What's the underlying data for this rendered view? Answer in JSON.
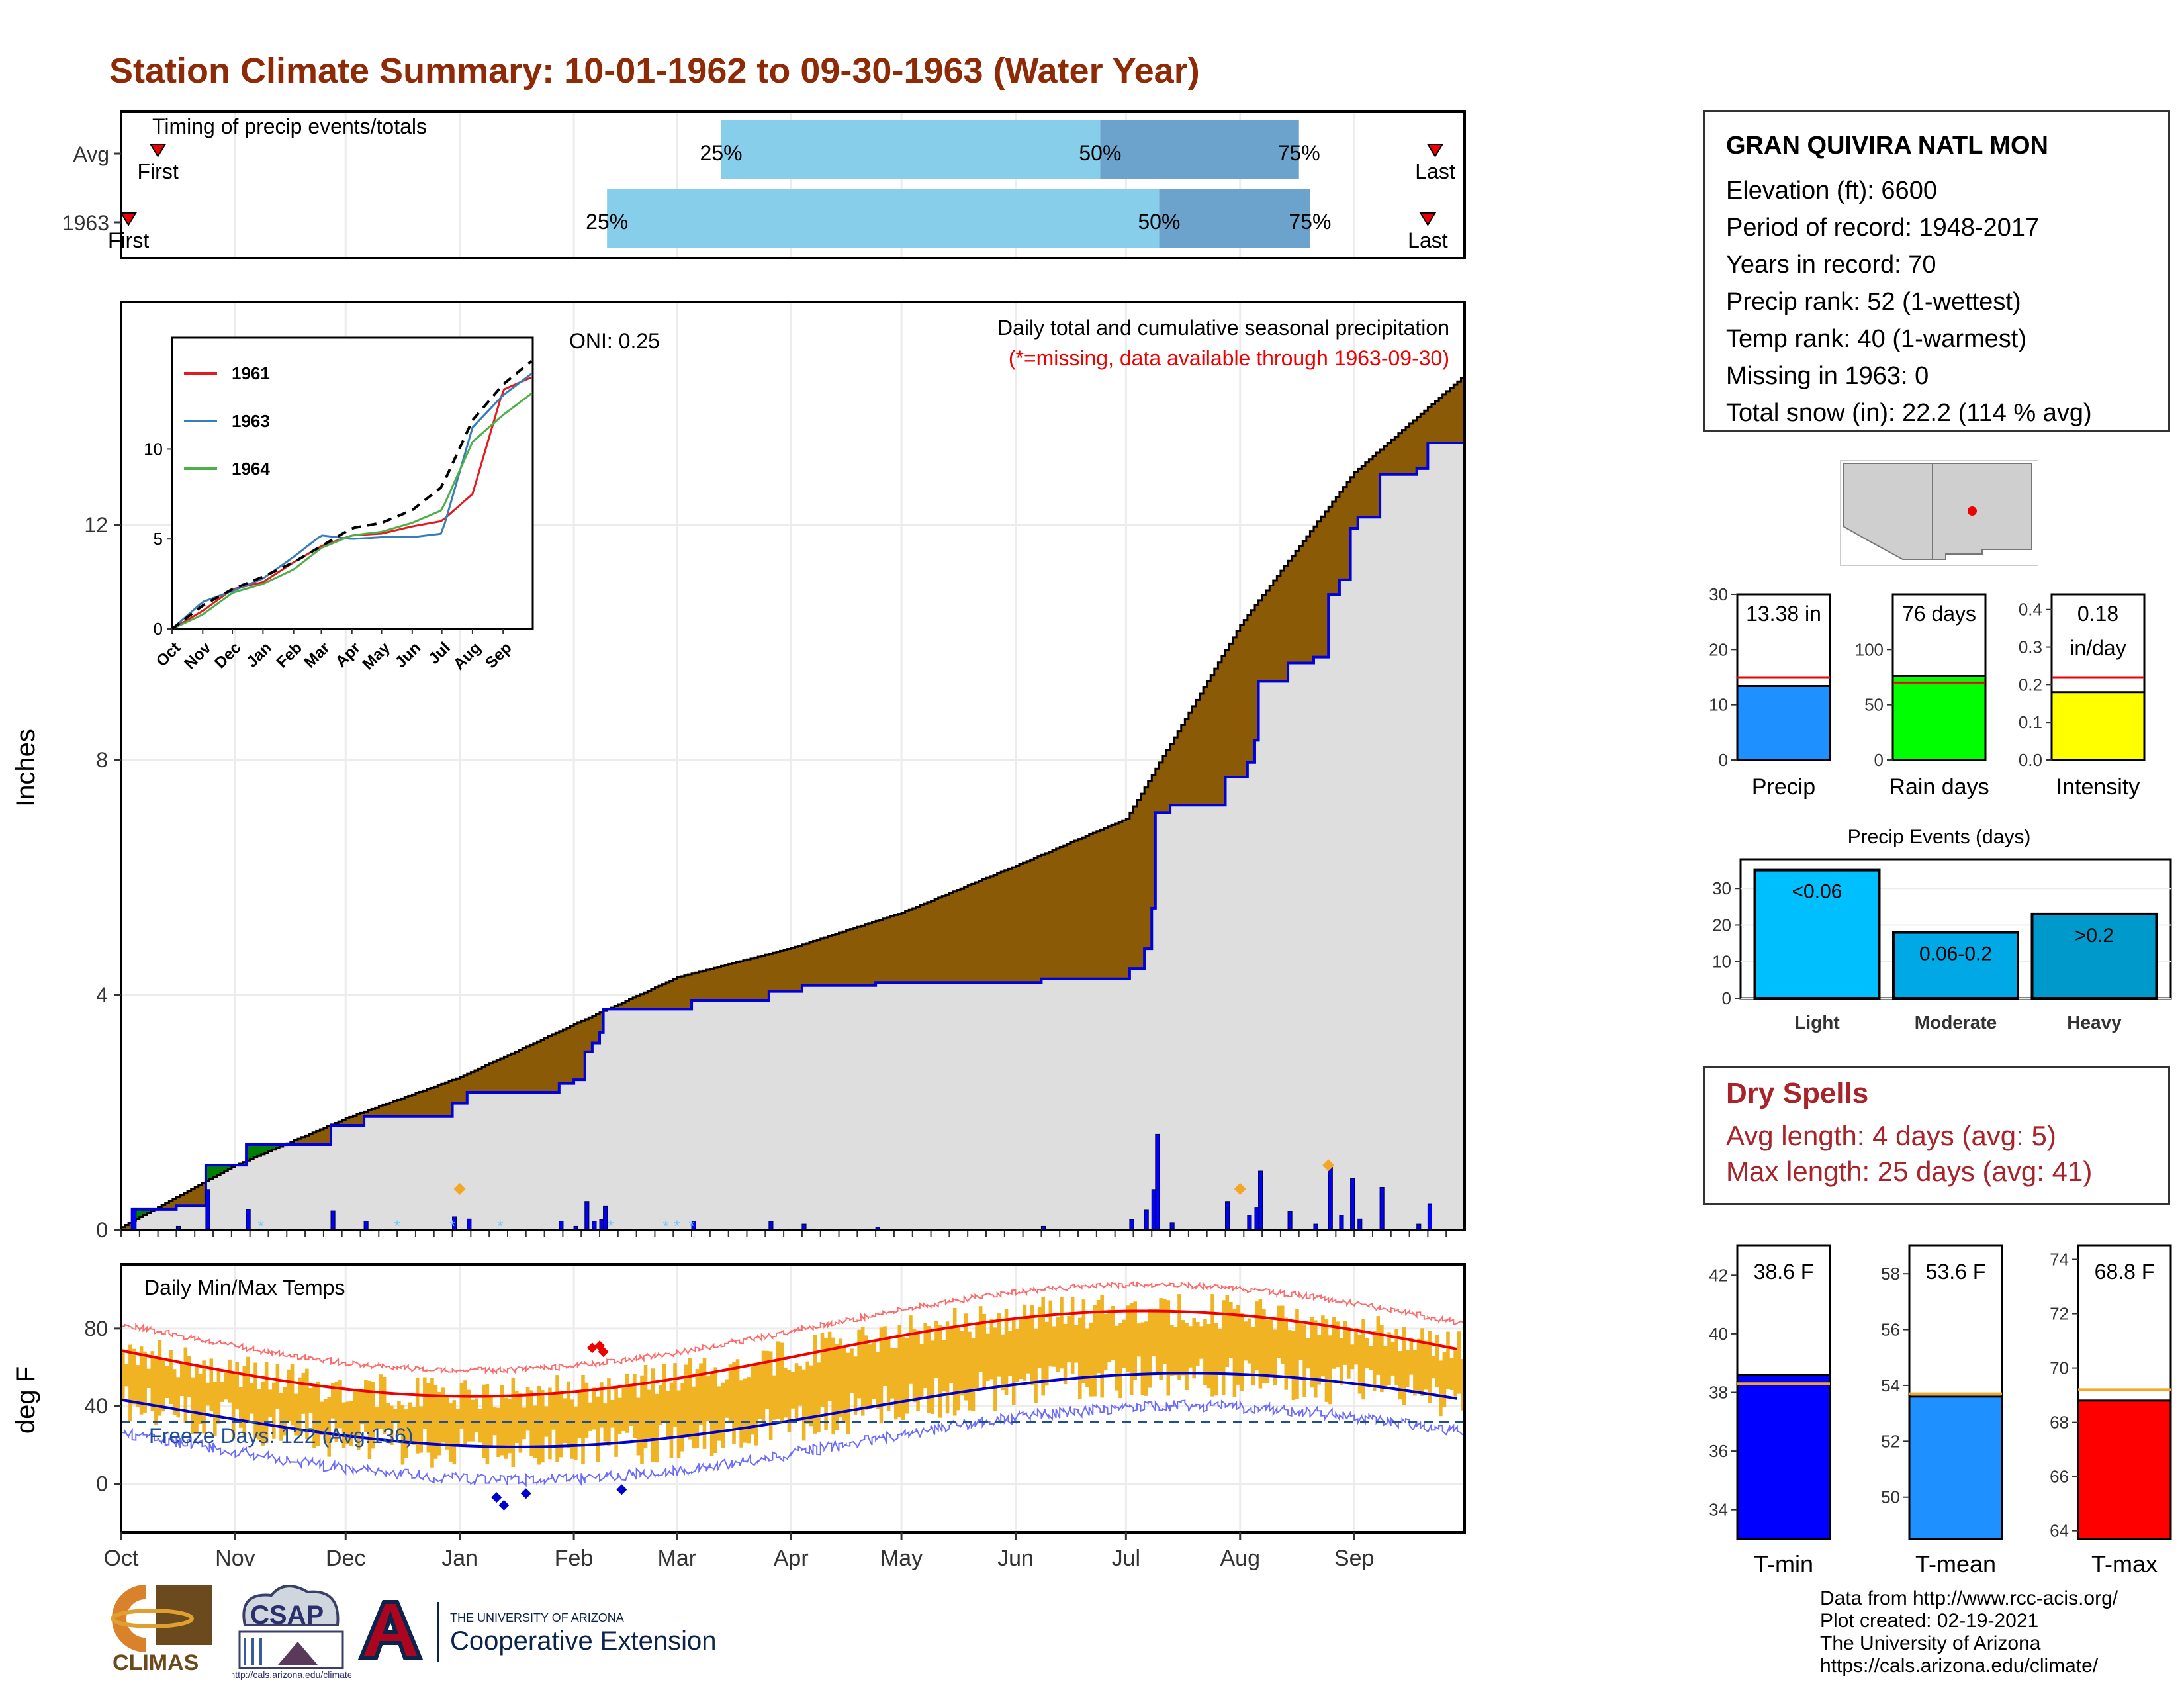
{
  "title": "Station Climate Summary: 10-01-1962 to 09-30-1963 (Water Year)",
  "months": [
    "Oct",
    "Nov",
    "Dec",
    "Jan",
    "Feb",
    "Mar",
    "Apr",
    "May",
    "Jun",
    "Jul",
    "Aug",
    "Sep"
  ],
  "timing": {
    "label": "Timing of precip events/totals",
    "rows": [
      {
        "label": "Avg",
        "first": "First",
        "last": "Last",
        "p25": "25%",
        "p50": "50%",
        "p75": "75%",
        "first_day": 10,
        "p25_day": 163,
        "p50_day": 266,
        "p75_day": 320,
        "last_day": 357
      },
      {
        "label": "1963",
        "first": "First",
        "last": "Last",
        "p25": "25%",
        "p50": "50%",
        "p75": "75%",
        "first_day": 2,
        "p25_day": 132,
        "p50_day": 282,
        "p75_day": 323,
        "last_day": 355
      }
    ]
  },
  "precip": {
    "annotation_title": "Daily total and cumulative seasonal precipitation",
    "annotation_missing": "(*=missing, data available through 1963-09-30)",
    "oni": "ONI: 0.25",
    "ylabel": "Inches",
    "count_label": "3",
    "yticks": [
      0,
      4,
      8,
      12
    ]
  },
  "inset": {
    "legend": [
      "1961",
      "1963",
      "1964"
    ],
    "yticks": [
      "0",
      "5",
      "10"
    ],
    "months": [
      "Oct",
      "Nov",
      "Dec",
      "Jan",
      "Feb",
      "Mar",
      "Apr",
      "May",
      "Jun",
      "Jul",
      "Aug",
      "Sep"
    ]
  },
  "temps": {
    "label": "Daily Min/Max Temps",
    "freeze": "Freeze Days: 122 (Avg:136)",
    "ylabel": "deg F",
    "max_count": "3",
    "min_count": "5",
    "yticks": [
      0,
      40,
      80
    ]
  },
  "station": {
    "name": "GRAN QUIVIRA NATL MON",
    "lines": [
      "Elevation (ft): 6600",
      "Period of record: 1948-2017",
      "Years in record: 70",
      "Precip rank: 52 (1-wettest)",
      "Temp rank: 40 (1-warmest)",
      "Missing in 1963: 0",
      "Total snow (in): 22.2 (114 % avg)"
    ]
  },
  "summary_bars": [
    {
      "name": "Precip",
      "value": 13.38,
      "avg": 15,
      "ymax": 30,
      "yticks": [
        "0",
        "10",
        "20",
        "30"
      ],
      "label_lines": [
        "13.38 in"
      ],
      "color": "#1e90ff"
    },
    {
      "name": "Rain days",
      "value": 76,
      "avg": 70,
      "ymax": 150,
      "yticks": [
        "0",
        "50",
        "100"
      ],
      "label_lines": [
        "76 days"
      ],
      "color": "#00ff00"
    },
    {
      "name": "Intensity",
      "value": 0.18,
      "avg": 0.22,
      "ymax": 0.44,
      "yticks": [
        "0.0",
        "0.1",
        "0.2",
        "0.3",
        "0.4"
      ],
      "label_lines": [
        "0.18",
        "in/day"
      ],
      "color": "#ffff00"
    }
  ],
  "precip_events": {
    "title": "Precip Events (days)",
    "yticks": [
      "0",
      "10",
      "20",
      "30"
    ],
    "categories": [
      "Light",
      "Moderate",
      "Heavy"
    ],
    "labels": [
      "<0.06",
      "0.06-0.2",
      ">0.2"
    ],
    "values": [
      35,
      18,
      23
    ],
    "colors": [
      "#00bfff",
      "#00a9e6",
      "#0099cc"
    ]
  },
  "dry_spells": {
    "title": "Dry Spells",
    "lines": [
      "Avg length: 4 days (avg: 5)",
      "Max length: 25 days (avg: 41)"
    ]
  },
  "temp_bars": [
    {
      "name": "T-min",
      "label": "38.6 F",
      "value": 38.6,
      "avg": 38.3,
      "ymin": 33,
      "ymax": 43,
      "yticks": [
        34,
        36,
        38,
        40,
        42
      ],
      "color": "#0000ff"
    },
    {
      "name": "T-mean",
      "label": "53.6 F",
      "value": 53.6,
      "avg": 53.7,
      "ymin": 48.5,
      "ymax": 59,
      "yticks": [
        50,
        52,
        54,
        56,
        58
      ],
      "color": "#1e90ff"
    },
    {
      "name": "T-max",
      "label": "68.8 F",
      "value": 68.8,
      "avg": 69.2,
      "ymin": 63.7,
      "ymax": 74.5,
      "yticks": [
        64,
        66,
        68,
        70,
        72,
        74
      ],
      "color": "#ff0000"
    }
  ],
  "footer": {
    "lines": [
      "Data from http://www.rcc-acis.org/",
      "Plot created: 02-19-2021",
      "The University of Arizona",
      "https://cals.arizona.edu/climate/"
    ]
  },
  "logos": {
    "climas": "CLIMAS",
    "csap": "CSAP",
    "csap_url": "http://cals.arizona.edu/climate",
    "ua_line1": "THE UNIVERSITY OF ARIZONA",
    "ua_line2": "Cooperative Extension"
  },
  "chart_data": {
    "type": "area",
    "title": "Daily total and cumulative seasonal precipitation",
    "ylabel": "Inches",
    "x": [
      "10-01",
      "11-01",
      "12-01",
      "01-01",
      "02-01",
      "03-01",
      "04-01",
      "05-01",
      "06-01",
      "07-01",
      "08-01",
      "09-01",
      "09-30"
    ],
    "series": [
      {
        "name": "Cumulative average",
        "values": [
          0.05,
          1.1,
          1.9,
          2.6,
          3.5,
          4.3,
          4.8,
          5.4,
          6.2,
          7.0,
          10.3,
          12.9,
          14.5
        ]
      },
      {
        "name": "Cumulative 1963",
        "values": [
          0.0,
          1.0,
          1.6,
          2.3,
          3.1,
          4.6,
          4.9,
          5.0,
          5.0,
          5.1,
          9.3,
          12.7,
          13.4
        ]
      }
    ],
    "ylim": [
      0,
      15.8
    ]
  }
}
